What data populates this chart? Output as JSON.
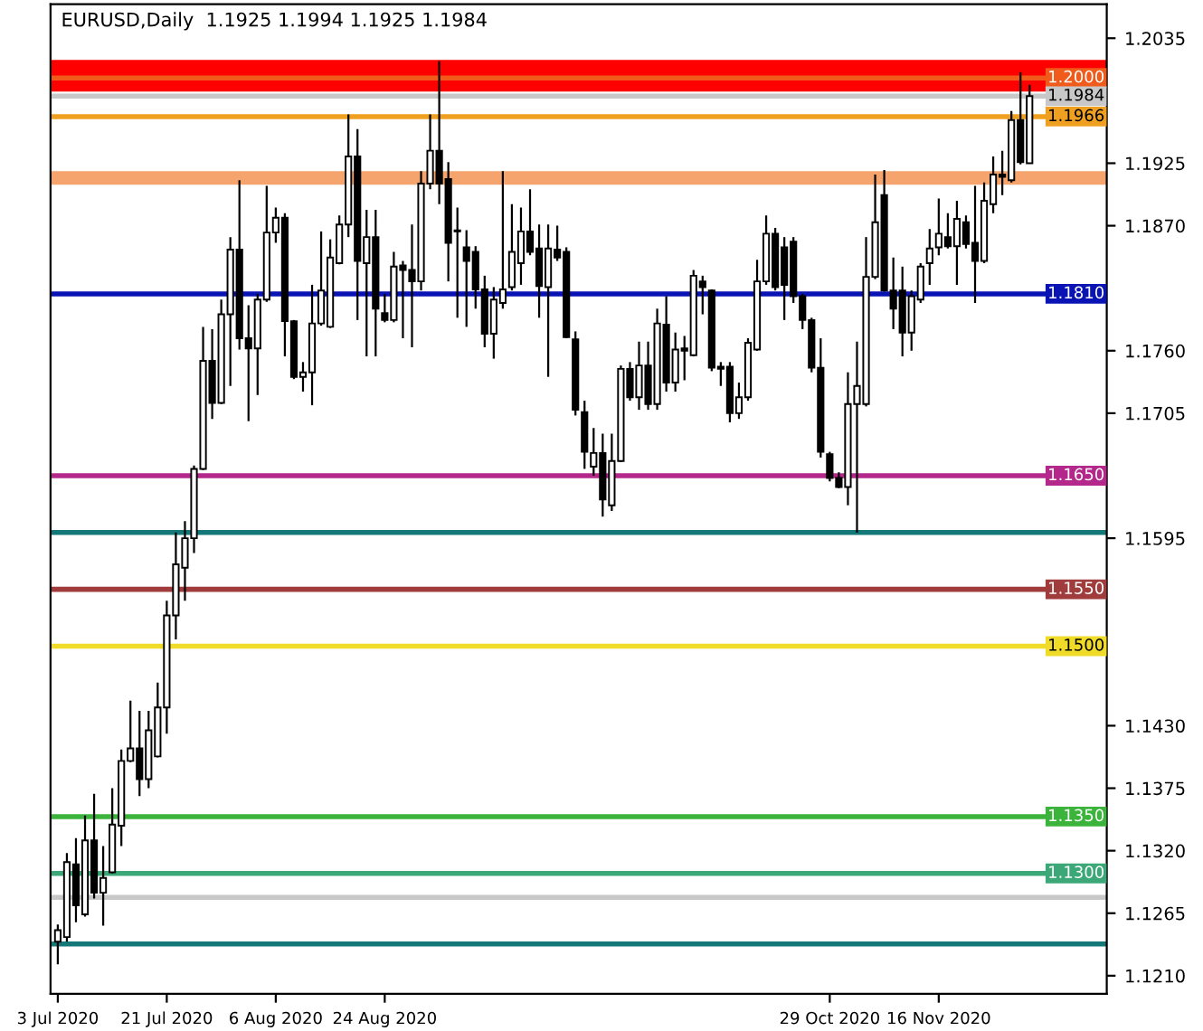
{
  "chart_data": {
    "type": "candlestick",
    "title": "EURUSD,Daily  1.1925 1.1994 1.1925 1.1984",
    "categories": [
      "3 Jul 2020",
      null,
      null,
      null,
      null,
      null,
      null,
      null,
      null,
      null,
      null,
      null,
      "21 Jul 2020",
      null,
      null,
      null,
      null,
      null,
      null,
      null,
      null,
      null,
      null,
      null,
      "6 Aug 2020",
      null,
      null,
      null,
      null,
      null,
      null,
      null,
      null,
      null,
      null,
      null,
      "24 Aug 2020",
      null,
      null,
      null,
      null,
      null,
      null,
      null,
      null,
      null,
      null,
      null,
      null,
      null,
      null,
      null,
      null,
      null,
      null,
      null,
      null,
      null,
      null,
      null,
      null,
      null,
      null,
      null,
      null,
      null,
      null,
      null,
      null,
      null,
      null,
      null,
      null,
      null,
      null,
      null,
      null,
      null,
      null,
      null,
      null,
      null,
      null,
      null,
      null,
      "29 Oct 2020",
      null,
      null,
      null,
      null,
      null,
      null,
      null,
      null,
      null,
      null,
      null,
      "16 Nov 2020",
      null,
      null,
      null,
      null,
      null,
      null,
      null,
      null,
      null,
      null
    ],
    "ohlc": [
      [
        1.124,
        1.1255,
        1.122,
        1.125
      ],
      [
        1.1244,
        1.1318,
        1.124,
        1.131
      ],
      [
        1.1308,
        1.1331,
        1.1257,
        1.1272
      ],
      [
        1.1264,
        1.1351,
        1.1262,
        1.1329
      ],
      [
        1.1329,
        1.137,
        1.1278,
        1.1283
      ],
      [
        1.1283,
        1.1324,
        1.1254,
        1.1296
      ],
      [
        1.1301,
        1.1375,
        1.13,
        1.1343
      ],
      [
        1.1342,
        1.1409,
        1.1324,
        1.1399
      ],
      [
        1.1399,
        1.1452,
        1.1398,
        1.141
      ],
      [
        1.141,
        1.1443,
        1.1368,
        1.1383
      ],
      [
        1.1383,
        1.1443,
        1.1375,
        1.1426
      ],
      [
        1.1403,
        1.1468,
        1.1402,
        1.1446
      ],
      [
        1.1446,
        1.154,
        1.1423,
        1.1527
      ],
      [
        1.1527,
        1.16,
        1.1506,
        1.1572
      ],
      [
        1.1569,
        1.161,
        1.154,
        1.1595
      ],
      [
        1.1595,
        1.1659,
        1.1582,
        1.1656
      ],
      [
        1.1656,
        1.1781,
        1.1655,
        1.1751
      ],
      [
        1.1751,
        1.1779,
        1.17,
        1.1714
      ],
      [
        1.1714,
        1.1805,
        1.1713,
        1.1792
      ],
      [
        1.1792,
        1.186,
        1.1729,
        1.1849
      ],
      [
        1.1849,
        1.191,
        1.1761,
        1.1771
      ],
      [
        1.1771,
        1.18,
        1.1698,
        1.1762
      ],
      [
        1.1762,
        1.181,
        1.1721,
        1.1805
      ],
      [
        1.1805,
        1.1905,
        1.1803,
        1.1864
      ],
      [
        1.1864,
        1.1886,
        1.1855,
        1.1877
      ],
      [
        1.1877,
        1.1881,
        1.1755,
        1.1786
      ],
      [
        1.1786,
        1.1787,
        1.1735,
        1.1737
      ],
      [
        1.1737,
        1.175,
        1.1724,
        1.1741
      ],
      [
        1.1741,
        1.1818,
        1.1712,
        1.1784
      ],
      [
        1.1784,
        1.1865,
        1.1782,
        1.1813
      ],
      [
        1.1781,
        1.1858,
        1.178,
        1.1842
      ],
      [
        1.1837,
        1.1879,
        1.1836,
        1.1871
      ],
      [
        1.1871,
        1.1968,
        1.186,
        1.1931
      ],
      [
        1.1931,
        1.1955,
        1.1787,
        1.1839
      ],
      [
        1.1837,
        1.1884,
        1.1755,
        1.186
      ],
      [
        1.186,
        1.1884,
        1.1755,
        1.1797
      ],
      [
        1.1793,
        1.181,
        1.1785,
        1.1787
      ],
      [
        1.1787,
        1.1847,
        1.1785,
        1.1834
      ],
      [
        1.1835,
        1.1839,
        1.1771,
        1.1831
      ],
      [
        1.1831,
        1.1871,
        1.1763,
        1.1821
      ],
      [
        1.1821,
        1.1918,
        1.1813,
        1.1907
      ],
      [
        1.1907,
        1.1968,
        1.1902,
        1.1936
      ],
      [
        1.1936,
        1.2015,
        1.1889,
        1.1907
      ],
      [
        1.1911,
        1.1926,
        1.1821,
        1.1855
      ],
      [
        1.1866,
        1.1886,
        1.1789,
        1.1865
      ],
      [
        1.1851,
        1.1866,
        1.1781,
        1.1839
      ],
      [
        1.1847,
        1.1852,
        1.1797,
        1.1814
      ],
      [
        1.1814,
        1.1826,
        1.1763,
        1.1775
      ],
      [
        1.1775,
        1.1816,
        1.1753,
        1.1805
      ],
      [
        1.1802,
        1.1918,
        1.1797,
        1.1814
      ],
      [
        1.1816,
        1.1889,
        1.1813,
        1.1847
      ],
      [
        1.1837,
        1.1886,
        1.1818,
        1.1865
      ],
      [
        1.1865,
        1.1902,
        1.1844,
        1.1847
      ],
      [
        1.185,
        1.1871,
        1.1789,
        1.1817
      ],
      [
        1.1816,
        1.1871,
        1.1737,
        1.185
      ],
      [
        1.1849,
        1.187,
        1.1839,
        1.1842
      ],
      [
        1.1847,
        1.1851,
        1.1771,
        1.1772
      ],
      [
        1.177,
        1.1777,
        1.1703,
        1.1708
      ],
      [
        1.1706,
        1.1716,
        1.1656,
        1.1671
      ],
      [
        1.1658,
        1.1692,
        1.165,
        1.167
      ],
      [
        1.167,
        1.1687,
        1.1614,
        1.1629
      ],
      [
        1.1624,
        1.1687,
        1.1619,
        1.1663
      ],
      [
        1.1663,
        1.1747,
        1.1662,
        1.1744
      ],
      [
        1.1744,
        1.175,
        1.1716,
        1.1719
      ],
      [
        1.1719,
        1.1768,
        1.1708,
        1.1747
      ],
      [
        1.1747,
        1.1768,
        1.1708,
        1.1713
      ],
      [
        1.1713,
        1.1797,
        1.1708,
        1.1784
      ],
      [
        1.1783,
        1.1808,
        1.1724,
        1.1732
      ],
      [
        1.1732,
        1.1776,
        1.1724,
        1.1761
      ],
      [
        1.1762,
        1.1773,
        1.1734,
        1.176
      ],
      [
        1.1756,
        1.1831,
        1.1755,
        1.1826
      ],
      [
        1.1821,
        1.1826,
        1.1792,
        1.1816
      ],
      [
        1.1813,
        1.1814,
        1.1742,
        1.1745
      ],
      [
        1.1746,
        1.175,
        1.1729,
        1.1744
      ],
      [
        1.1746,
        1.175,
        1.1697,
        1.1705
      ],
      [
        1.1705,
        1.1732,
        1.17,
        1.1719
      ],
      [
        1.1719,
        1.1771,
        1.1716,
        1.1767
      ],
      [
        1.1761,
        1.184,
        1.176,
        1.1821
      ],
      [
        1.1821,
        1.1879,
        1.1818,
        1.1863
      ],
      [
        1.1863,
        1.1868,
        1.1813,
        1.1816
      ],
      [
        1.1851,
        1.186,
        1.1787,
        1.1818
      ],
      [
        1.1856,
        1.186,
        1.1802,
        1.1808
      ],
      [
        1.1808,
        1.181,
        1.1779,
        1.1787
      ],
      [
        1.1787,
        1.1789,
        1.1741,
        1.1745
      ],
      [
        1.1745,
        1.1771,
        1.1666,
        1.1671
      ],
      [
        1.1669,
        1.1671,
        1.1645,
        1.1648
      ],
      [
        1.1648,
        1.1653,
        1.1639,
        1.164
      ],
      [
        1.164,
        1.1741,
        1.1624,
        1.1713
      ],
      [
        1.1713,
        1.1768,
        1.16,
        1.1729
      ],
      [
        1.1713,
        1.186,
        1.1711,
        1.1825
      ],
      [
        1.1825,
        1.1915,
        1.1823,
        1.1873
      ],
      [
        1.1897,
        1.1919,
        1.1812,
        1.1813
      ],
      [
        1.1813,
        1.1842,
        1.1779,
        1.1797
      ],
      [
        1.1813,
        1.1834,
        1.1755,
        1.1776
      ],
      [
        1.1776,
        1.1813,
        1.176,
        1.1808
      ],
      [
        1.1805,
        1.1837,
        1.1802,
        1.1834
      ],
      [
        1.1837,
        1.1867,
        1.1818,
        1.185
      ],
      [
        1.1851,
        1.1894,
        1.1844,
        1.1863
      ],
      [
        1.186,
        1.1881,
        1.185,
        1.1852
      ],
      [
        1.1852,
        1.1892,
        1.1818,
        1.1876
      ],
      [
        1.1873,
        1.1879,
        1.185,
        1.1854
      ],
      [
        1.1855,
        1.1905,
        1.1802,
        1.1839
      ],
      [
        1.1839,
        1.1908,
        1.1837,
        1.1892
      ],
      [
        1.1889,
        1.1931,
        1.1881,
        1.1915
      ],
      [
        1.1915,
        1.1936,
        1.1897,
        1.1913
      ],
      [
        1.191,
        1.1971,
        1.1908,
        1.1963
      ],
      [
        1.1963,
        1.2005,
        1.1924,
        1.1926
      ],
      [
        1.1925,
        1.1994,
        1.1925,
        1.1984
      ]
    ],
    "ylim": [
      1.1194,
      1.2065
    ],
    "yticks": [
      1.2035,
      1.1925,
      {
        "value": 1.187,
        "label": "1.1870"
      },
      {
        "value": 1.176,
        "label": "1.1760"
      },
      1.1705,
      1.1595,
      {
        "value": 1.143,
        "label": "1.1430"
      },
      1.1375,
      {
        "value": 1.132,
        "label": "1.1320"
      },
      1.1265,
      {
        "value": 1.121,
        "label": "1.1210"
      }
    ],
    "ref_lines": [
      {
        "axis": "y",
        "value": 1.2,
        "label": "1.2000",
        "color": "#f05a1a"
      },
      {
        "axis": "y",
        "value": 1.1984,
        "label": "1.1984",
        "color": "#c8c8c8"
      },
      {
        "axis": "y",
        "value": 1.1966,
        "label": "1.1966",
        "color": "#f0a020"
      },
      {
        "axis": "y",
        "value": 1.181,
        "label": "1.1810",
        "color": "#0a14b4"
      },
      {
        "axis": "y",
        "value": 1.165,
        "label": "1.1650",
        "color": "#b4288c"
      },
      {
        "axis": "y",
        "value": 1.16,
        "label": null,
        "color": "#147878"
      },
      {
        "axis": "y",
        "value": 1.155,
        "label": "1.1550",
        "color": "#a03c3c"
      },
      {
        "axis": "y",
        "value": 1.15,
        "label": "1.1500",
        "color": "#f0dc28"
      },
      {
        "axis": "y",
        "value": 1.135,
        "label": "1.1350",
        "color": "#3cb43c"
      },
      {
        "axis": "y",
        "value": 1.13,
        "label": "1.1300",
        "color": "#3ca878"
      },
      {
        "axis": "y",
        "value": 1.1279,
        "label": null,
        "color": "#c8c8c8"
      },
      {
        "axis": "y",
        "value": 1.1238,
        "label": null,
        "color": "#147878"
      }
    ],
    "bands": [
      {
        "axis": "y",
        "from": 1.1988,
        "to": 1.2016,
        "label": null,
        "color": "#ff0000"
      },
      {
        "axis": "y",
        "from": 1.1906,
        "to": 1.1918,
        "label": null,
        "color": "#f4a46c"
      }
    ],
    "grid": false,
    "legend": false
  }
}
